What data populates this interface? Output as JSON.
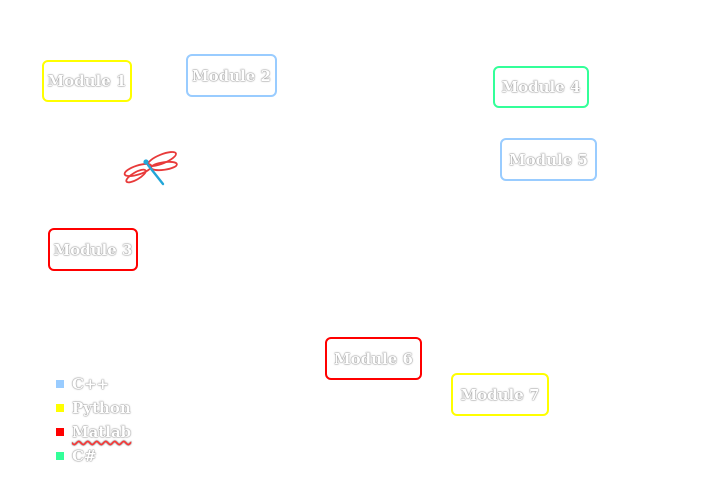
{
  "modules": [
    {
      "label": "Module 1",
      "color": "#ffff00"
    },
    {
      "label": "Module 2",
      "color": "#99ccff"
    },
    {
      "label": "Module 3",
      "color": "#ff0000"
    },
    {
      "label": "Module 4",
      "color": "#33ff99"
    },
    {
      "label": "Module 5",
      "color": "#99ccff"
    },
    {
      "label": "Module 6",
      "color": "#ff0000"
    },
    {
      "label": "Module 7",
      "color": "#ffff00"
    }
  ],
  "legend": [
    {
      "label": "C++",
      "color": "#99ccff"
    },
    {
      "label": "Python",
      "color": "#ffff00"
    },
    {
      "label": "Matlab",
      "color": "#ff0000"
    },
    {
      "label": "C#",
      "color": "#33ff99"
    }
  ],
  "logo": {
    "icon": "dragonfly-icon",
    "wing_color": "#e83a3a",
    "body_color": "#22a6d8"
  }
}
